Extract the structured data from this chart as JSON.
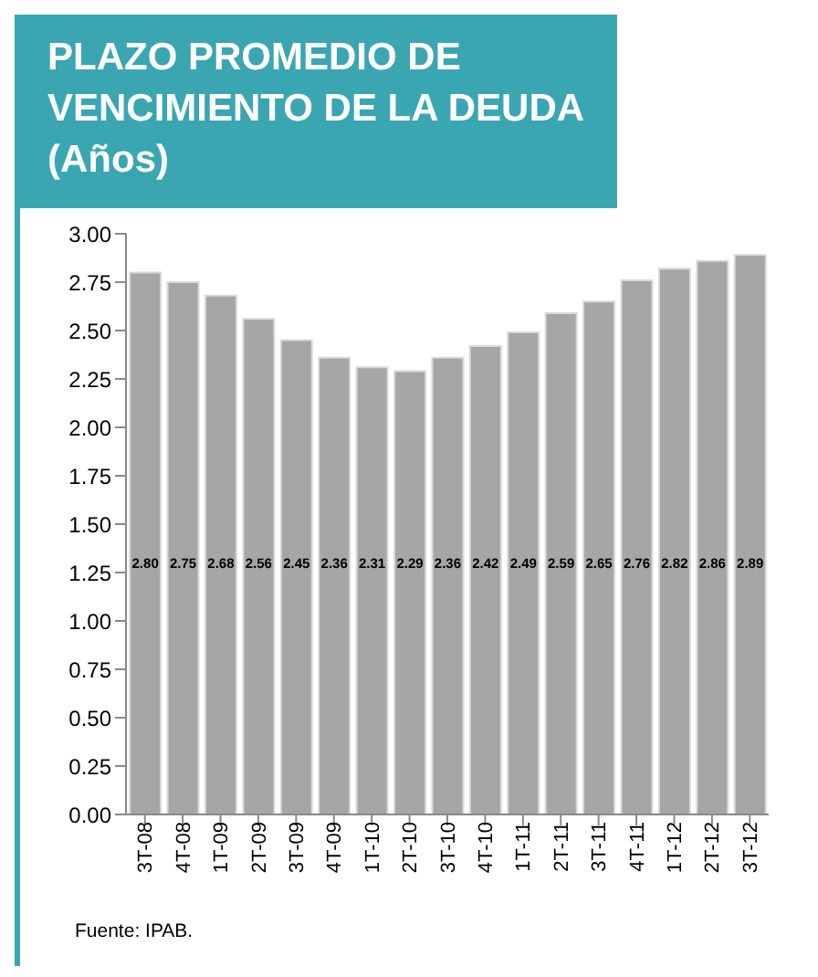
{
  "chart_data": {
    "type": "bar",
    "title": "PLAZO PROMEDIO  DE VENCIMIENTO DE LA DEUDA (Años)",
    "categories": [
      "3T-08",
      "4T-08",
      "1T-09",
      "2T-09",
      "3T-09",
      "4T-09",
      "1T-10",
      "2T-10",
      "3T-10",
      "4T-10",
      "1T-11",
      "2T-11",
      "3T-11",
      "4T-11",
      "1T-12",
      "2T-12",
      "3T-12"
    ],
    "values": [
      2.8,
      2.75,
      2.68,
      2.56,
      2.45,
      2.36,
      2.31,
      2.29,
      2.36,
      2.42,
      2.49,
      2.59,
      2.65,
      2.76,
      2.82,
      2.86,
      2.89
    ],
    "value_labels": [
      "2.80",
      "2.75",
      "2.68",
      "2.56",
      "2.45",
      "2.36",
      "2.31",
      "2.29",
      "2.36",
      "2.42",
      "2.49",
      "2.59",
      "2.65",
      "2.76",
      "2.82",
      "2.86",
      "2.89"
    ],
    "color": "#a6a6a6",
    "grid": false,
    "legend": false,
    "ylim": [
      0,
      3
    ],
    "yticks": [
      {
        "value": 0,
        "label": "0.00"
      },
      {
        "value": 0.25,
        "label": "0.25"
      },
      {
        "value": 0.5,
        "label": "0.50"
      },
      {
        "value": 0.75,
        "label": "0.75"
      },
      {
        "value": 1,
        "label": "1.00"
      },
      {
        "value": 1.25,
        "label": "1.25"
      },
      {
        "value": 1.5,
        "label": "1.50"
      },
      {
        "value": 1.75,
        "label": "1.75"
      },
      {
        "value": 2,
        "label": "2.00"
      },
      {
        "value": 2.25,
        "label": "2.25"
      },
      {
        "value": 2.5,
        "label": "2.50"
      },
      {
        "value": 2.75,
        "label": "2.75"
      },
      {
        "value": 3,
        "label": "3.00"
      }
    ],
    "annotations": [
      "Fuente: IPAB."
    ]
  }
}
